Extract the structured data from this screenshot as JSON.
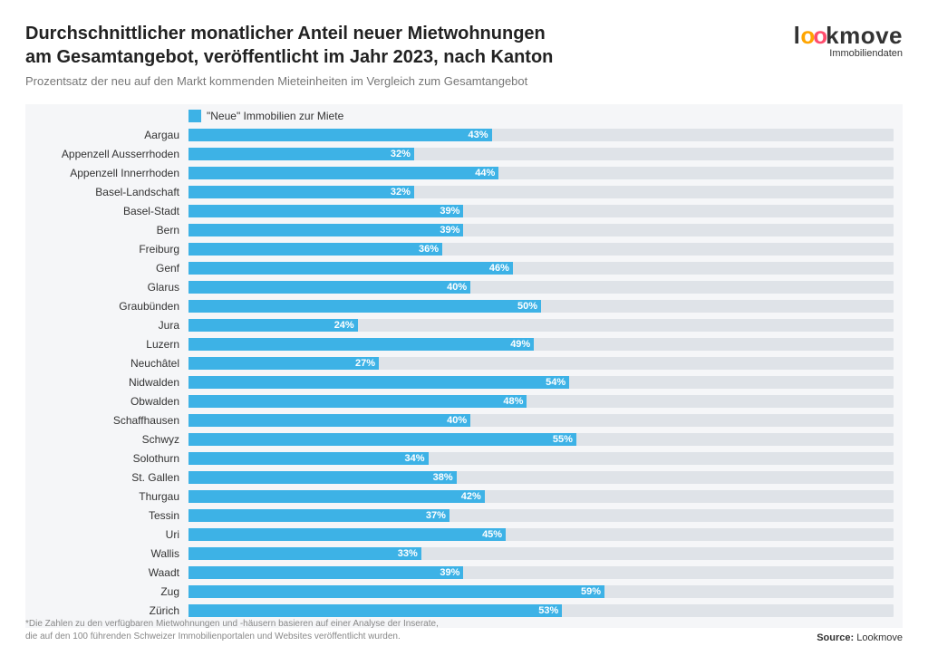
{
  "header": {
    "title_line1": "Durchschnittlicher monatlicher Anteil neuer Mietwohnungen",
    "title_line2": "am Gesamtangebot, veröffentlicht im Jahr 2023, nach Kanton",
    "subtitle": "Prozentsatz der neu auf den Markt kommenden Mieteinheiten im Vergleich zum Gesamtangebot"
  },
  "logo": {
    "part1": "l",
    "part2": "o",
    "part3": "o",
    "part4": "kmove",
    "tagline": "Immobiliendaten"
  },
  "chart": {
    "type": "horizontal-bar",
    "legend_label": "\"Neue\" Immobilien zur Miete",
    "legend_color": "#3db2e6",
    "track_color": "#dfe3e8",
    "chart_bg": "#f5f6f8",
    "bar_color": "#3db2e6",
    "value_color": "#ffffff",
    "xmax": 100,
    "value_suffix": "%",
    "label_fontsize": 12,
    "value_fontsize": 11,
    "categories": [
      "Aargau",
      "Appenzell Ausserrhoden",
      "Appenzell Innerrhoden",
      "Basel-Landschaft",
      "Basel-Stadt",
      "Bern",
      "Freiburg",
      "Genf",
      "Glarus",
      "Graubünden",
      "Jura",
      "Luzern",
      "Neuchâtel",
      "Nidwalden",
      "Obwalden",
      "Schaffhausen",
      "Schwyz",
      "Solothurn",
      "St. Gallen",
      "Thurgau",
      "Tessin",
      "Uri",
      "Wallis",
      "Waadt",
      "Zug",
      "Zürich"
    ],
    "values": [
      43,
      32,
      44,
      32,
      39,
      39,
      36,
      46,
      40,
      50,
      24,
      49,
      27,
      54,
      48,
      40,
      55,
      34,
      38,
      42,
      37,
      45,
      33,
      39,
      59,
      53
    ]
  },
  "footer": {
    "footnote_line1": "*Die Zahlen zu den verfügbaren Mietwohnungen und -häusern basieren auf einer Analyse der Inserate,",
    "footnote_line2": "die auf den 100 führenden Schweizer Immobilienportalen und Websites veröffentlicht wurden.",
    "source_label": "Source:",
    "source_value": "Lookmove"
  }
}
